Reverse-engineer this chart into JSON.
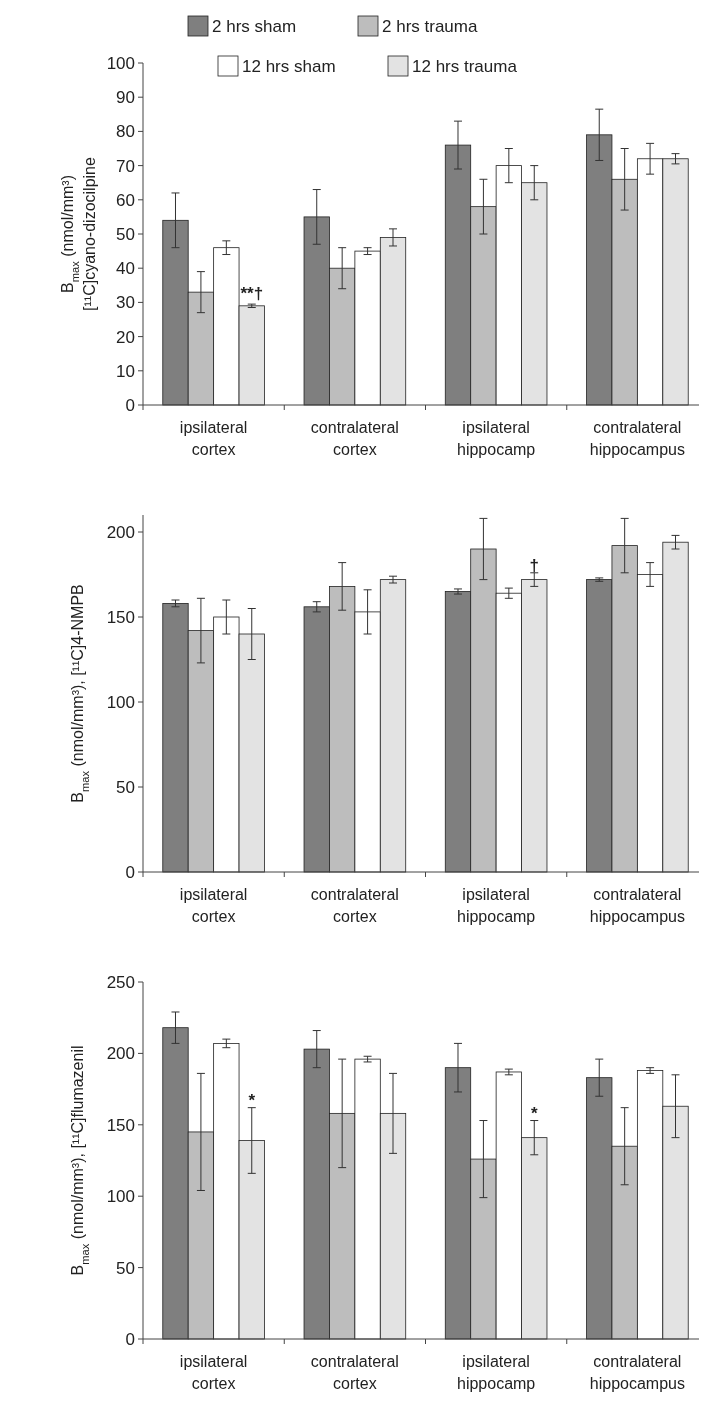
{
  "chart_data": [
    {
      "type": "bar",
      "ylabel": "B$_{max}$ (nmol/mm³)\n[¹¹C]cyano-dizocilpine",
      "categories": [
        "ipsilateral cortex",
        "contralateral cortex",
        "ipsilateral hippocamp",
        "contralateral hippocampus"
      ],
      "ylim": [
        0,
        100
      ],
      "yticks": [
        0,
        10,
        20,
        30,
        40,
        50,
        60,
        70,
        80,
        90,
        100
      ],
      "legend": "top",
      "annotations": [
        {
          "text": "**†",
          "x": "ipsilateral cortex",
          "y": 31
        }
      ],
      "series": [
        {
          "name": "2 hrs sham",
          "color": "#7f7f7f",
          "values": [
            54,
            55,
            76,
            79
          ],
          "errors": [
            8,
            8,
            7,
            7.5
          ]
        },
        {
          "name": "2 hrs trauma",
          "color": "#bdbdbd",
          "values": [
            33,
            40,
            58,
            66
          ],
          "errors": [
            6,
            6,
            8,
            9
          ]
        },
        {
          "name": "12 hrs sham",
          "color": "#ffffff",
          "values": [
            46,
            45,
            70,
            72
          ],
          "errors": [
            2,
            1,
            5,
            4.5
          ]
        },
        {
          "name": "12 hrs trauma",
          "color": "#e3e3e3",
          "values": [
            29,
            49,
            65,
            72
          ],
          "errors": [
            0.5,
            2.5,
            5,
            1.5
          ]
        }
      ]
    },
    {
      "type": "bar",
      "ylabel": "B$_{max}$ (nmol/mm³), [¹¹C]4-NMPB",
      "categories": [
        "ipsilateral cortex",
        "contralateral cortex",
        "ipsilateral hippocamp",
        "contralateral hippocampus"
      ],
      "ylim": [
        0,
        210
      ],
      "yticks": [
        0,
        50,
        100,
        150,
        200
      ],
      "annotations": [
        {
          "text": "†",
          "x": "ipsilateral hippocamp",
          "y": 177
        }
      ],
      "series": [
        {
          "color": "#7f7f7f",
          "values": [
            158,
            156,
            165,
            172
          ],
          "errors": [
            2,
            3,
            1.5,
            1
          ]
        },
        {
          "color": "#bdbdbd",
          "values": [
            142,
            168,
            190,
            192
          ],
          "errors": [
            19,
            14,
            18,
            16
          ]
        },
        {
          "color": "#ffffff",
          "values": [
            150,
            153,
            164,
            175
          ],
          "errors": [
            10,
            13,
            3,
            7
          ]
        },
        {
          "color": "#e3e3e3",
          "values": [
            140,
            172,
            172,
            194
          ],
          "errors": [
            15,
            2,
            4,
            4
          ]
        }
      ]
    },
    {
      "type": "bar",
      "ylabel": "B$_{max}$ (nmol/mm³), [¹¹C]flumazenil",
      "categories": [
        "ipsilateral cortex",
        "contralateral cortex",
        "ipsilateral hippocamp",
        "contralateral hippocampus"
      ],
      "ylim": [
        0,
        250
      ],
      "yticks": [
        0,
        50,
        100,
        150,
        200,
        250
      ],
      "annotations": [
        {
          "text": "*",
          "x": "ipsilateral cortex",
          "y": 163
        },
        {
          "text": "*",
          "x": "ipsilateral hippocamp",
          "y": 154
        }
      ],
      "series": [
        {
          "color": "#7f7f7f",
          "values": [
            218,
            203,
            190,
            183
          ],
          "errors": [
            11,
            13,
            17,
            13
          ]
        },
        {
          "color": "#bdbdbd",
          "values": [
            145,
            158,
            126,
            135
          ],
          "errors": [
            41,
            38,
            27,
            27
          ]
        },
        {
          "color": "#ffffff",
          "values": [
            207,
            196,
            187,
            188
          ],
          "errors": [
            3,
            2,
            2,
            2
          ]
        },
        {
          "color": "#e3e3e3",
          "values": [
            139,
            158,
            141,
            163
          ],
          "errors": [
            23,
            28,
            12,
            22
          ]
        }
      ]
    }
  ]
}
